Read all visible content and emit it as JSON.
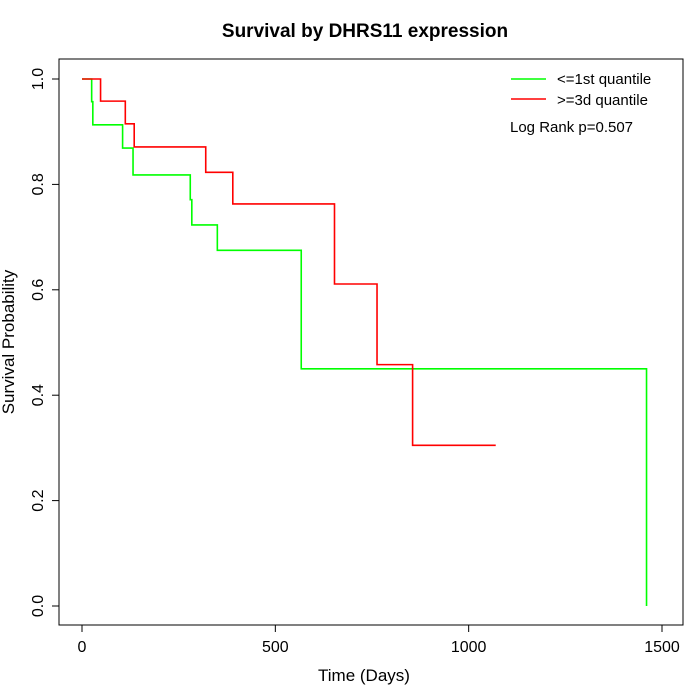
{
  "chart_data": {
    "type": "line",
    "title": "Survival by DHRS11 expression",
    "xlabel": "Time (Days)",
    "ylabel": "Survival Probability",
    "xlim": [
      0,
      1500
    ],
    "ylim": [
      0,
      1
    ],
    "xticks": [
      0,
      500,
      1000,
      1500
    ],
    "yticks": [
      0.0,
      0.2,
      0.4,
      0.6,
      0.8,
      1.0
    ],
    "xtick_labels": [
      "0",
      "500",
      "1000",
      "1500"
    ],
    "ytick_labels": [
      "0.0",
      "0.2",
      "0.4",
      "0.6",
      "0.8",
      "1.0"
    ],
    "grid": false,
    "legend_position": "top-right",
    "annotation": "Log Rank p=0.507",
    "series": [
      {
        "name": "<=1st quantile",
        "color": "#00ff00",
        "steps": [
          [
            0,
            1.0
          ],
          [
            25,
            0.957
          ],
          [
            28,
            0.913
          ],
          [
            105,
            0.869
          ],
          [
            132,
            0.818
          ],
          [
            280,
            0.771
          ],
          [
            284,
            0.723
          ],
          [
            350,
            0.675
          ],
          [
            567,
            0.45
          ],
          [
            1460,
            0.0
          ]
        ],
        "end_x": 1460
      },
      {
        "name": ">=3d quantile",
        "color": "#ff0000",
        "steps": [
          [
            0,
            1.0
          ],
          [
            48,
            0.958
          ],
          [
            112,
            0.915
          ],
          [
            135,
            0.871
          ],
          [
            320,
            0.823
          ],
          [
            390,
            0.763
          ],
          [
            653,
            0.611
          ],
          [
            763,
            0.458
          ],
          [
            855,
            0.305
          ]
        ],
        "end_x": 1070
      }
    ]
  }
}
